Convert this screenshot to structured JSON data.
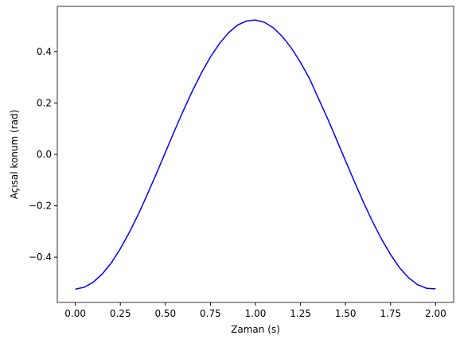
{
  "chart_data": {
    "type": "line",
    "x_label": "Zaman (s)",
    "y_label": "Açısal konum (rad)",
    "x": [
      0,
      0.05,
      0.1,
      0.15,
      0.2,
      0.25,
      0.3,
      0.35,
      0.4,
      0.45,
      0.5,
      0.55,
      0.6,
      0.65,
      0.7,
      0.75,
      0.8,
      0.85,
      0.9,
      0.95,
      1.0,
      1.05,
      1.1,
      1.15,
      1.2,
      1.25,
      1.3,
      1.35,
      1.4,
      1.45,
      1.5,
      1.55,
      1.6,
      1.65,
      1.7,
      1.75,
      1.8,
      1.85,
      1.9,
      1.95,
      2.0
    ],
    "series": [
      {
        "color": "#0000ff",
        "values": [
          -0.524,
          -0.517,
          -0.497,
          -0.465,
          -0.422,
          -0.367,
          -0.303,
          -0.233,
          -0.155,
          -0.075,
          0.008,
          0.091,
          0.171,
          0.247,
          0.317,
          0.379,
          0.431,
          0.473,
          0.503,
          0.519,
          0.523,
          0.514,
          0.492,
          0.458,
          0.413,
          0.358,
          0.295,
          0.217,
          0.14,
          0.058,
          -0.025,
          -0.107,
          -0.187,
          -0.262,
          -0.33,
          -0.39,
          -0.441,
          -0.48,
          -0.507,
          -0.521,
          -0.523
        ]
      }
    ],
    "xlim": [
      -0.1,
      2.1
    ],
    "ylim": [
      -0.576,
      0.576
    ],
    "xticks": [
      {
        "value": 0,
        "label": "0.00"
      },
      {
        "value": 0.25,
        "label": "0.25"
      },
      {
        "value": 0.5,
        "label": "0.50"
      },
      {
        "value": 0.75,
        "label": "0.75"
      },
      {
        "value": 1,
        "label": "1.00"
      },
      {
        "value": 1.25,
        "label": "1.25"
      },
      {
        "value": 1.5,
        "label": "1.50"
      },
      {
        "value": 1.75,
        "label": "1.75"
      },
      {
        "value": 2,
        "label": "2.00"
      }
    ],
    "yticks": [
      {
        "value": -0.4,
        "label": "−0.4"
      },
      {
        "value": -0.2,
        "label": "−0.2"
      },
      {
        "value": 0,
        "label": "0.0"
      },
      0.2,
      0.4
    ],
    "grid": false
  }
}
